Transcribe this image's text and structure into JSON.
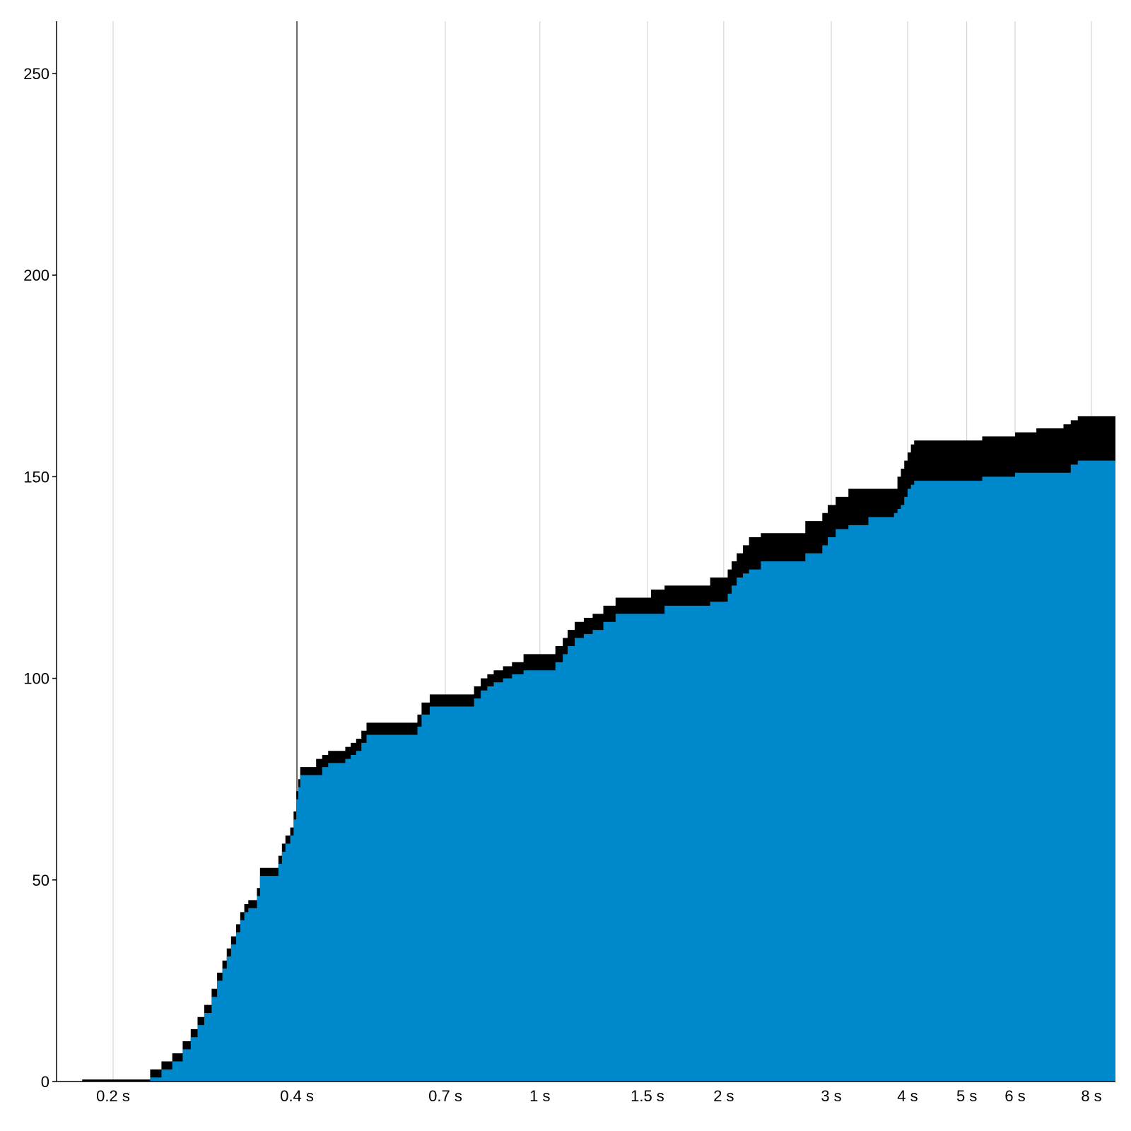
{
  "chart_data": {
    "type": "area",
    "title": "",
    "xlabel": "",
    "ylabel": "",
    "x_scale": "log",
    "x_unit": "s",
    "xlim": [
      0.165,
      9.6
    ],
    "ylim": [
      0,
      263
    ],
    "grid": true,
    "highlighted_x_gridline": 0.4,
    "x_ticks": [
      {
        "value": 0.2,
        "label": "0.2 s"
      },
      {
        "value": 0.4,
        "label": "0.4 s"
      },
      {
        "value": 0.7,
        "label": "0.7 s"
      },
      {
        "value": 1,
        "label": "1 s"
      },
      {
        "value": 1.5,
        "label": "1.5 s"
      },
      {
        "value": 2,
        "label": "2 s"
      },
      {
        "value": 3,
        "label": "3 s"
      },
      {
        "value": 4,
        "label": "4 s"
      },
      {
        "value": 5,
        "label": "5 s"
      },
      {
        "value": 6,
        "label": "6 s"
      },
      {
        "value": 8,
        "label": "8 s"
      }
    ],
    "y_ticks": [
      {
        "value": 0,
        "label": "0"
      },
      {
        "value": 50,
        "label": "50"
      },
      {
        "value": 100,
        "label": "100"
      },
      {
        "value": 150,
        "label": "150"
      },
      {
        "value": 200,
        "label": "200"
      },
      {
        "value": 250,
        "label": "250"
      }
    ],
    "series": [
      {
        "color": "#0088cc",
        "points": [
          [
            0.178,
            0
          ],
          [
            0.23,
            1
          ],
          [
            0.24,
            3
          ],
          [
            0.25,
            5
          ],
          [
            0.26,
            8
          ],
          [
            0.268,
            11
          ],
          [
            0.275,
            14
          ],
          [
            0.282,
            17
          ],
          [
            0.29,
            21
          ],
          [
            0.296,
            25
          ],
          [
            0.302,
            28
          ],
          [
            0.307,
            31
          ],
          [
            0.312,
            34
          ],
          [
            0.318,
            37
          ],
          [
            0.323,
            40
          ],
          [
            0.328,
            42
          ],
          [
            0.333,
            43
          ],
          [
            0.34,
            43
          ],
          [
            0.344,
            46
          ],
          [
            0.348,
            51
          ],
          [
            0.36,
            51
          ],
          [
            0.37,
            51
          ],
          [
            0.373,
            54
          ],
          [
            0.378,
            57
          ],
          [
            0.383,
            59
          ],
          [
            0.39,
            61
          ],
          [
            0.395,
            65
          ],
          [
            0.399,
            70
          ],
          [
            0.402,
            73
          ],
          [
            0.405,
            76
          ],
          [
            0.41,
            76
          ],
          [
            0.43,
            76
          ],
          [
            0.44,
            78
          ],
          [
            0.45,
            79
          ],
          [
            0.47,
            79
          ],
          [
            0.48,
            80
          ],
          [
            0.49,
            81
          ],
          [
            0.5,
            82
          ],
          [
            0.51,
            84
          ],
          [
            0.52,
            86
          ],
          [
            0.56,
            86
          ],
          [
            0.6,
            86
          ],
          [
            0.63,
            88
          ],
          [
            0.64,
            91
          ],
          [
            0.66,
            93
          ],
          [
            0.7,
            93
          ],
          [
            0.76,
            93
          ],
          [
            0.78,
            95
          ],
          [
            0.8,
            97
          ],
          [
            0.82,
            98
          ],
          [
            0.84,
            99
          ],
          [
            0.87,
            100
          ],
          [
            0.9,
            101
          ],
          [
            0.94,
            102
          ],
          [
            1.0,
            102
          ],
          [
            1.03,
            102
          ],
          [
            1.06,
            104
          ],
          [
            1.09,
            106
          ],
          [
            1.11,
            108
          ],
          [
            1.14,
            110
          ],
          [
            1.18,
            111
          ],
          [
            1.22,
            112
          ],
          [
            1.27,
            114
          ],
          [
            1.33,
            116
          ],
          [
            1.4,
            116
          ],
          [
            1.52,
            116
          ],
          [
            1.6,
            118
          ],
          [
            1.7,
            118
          ],
          [
            1.8,
            118
          ],
          [
            1.9,
            119
          ],
          [
            2.0,
            119
          ],
          [
            2.03,
            121
          ],
          [
            2.06,
            123
          ],
          [
            2.1,
            125
          ],
          [
            2.15,
            126
          ],
          [
            2.2,
            127
          ],
          [
            2.3,
            129
          ],
          [
            2.7,
            129
          ],
          [
            2.72,
            131
          ],
          [
            2.9,
            133
          ],
          [
            2.96,
            135
          ],
          [
            3.05,
            137
          ],
          [
            3.2,
            138
          ],
          [
            3.45,
            140
          ],
          [
            3.8,
            141
          ],
          [
            3.85,
            142
          ],
          [
            3.9,
            143
          ],
          [
            3.95,
            145
          ],
          [
            4.0,
            147
          ],
          [
            4.05,
            148
          ],
          [
            4.1,
            149
          ],
          [
            5.0,
            149
          ],
          [
            5.3,
            150
          ],
          [
            6.0,
            151
          ],
          [
            6.5,
            151
          ],
          [
            7.2,
            151
          ],
          [
            7.4,
            153
          ],
          [
            7.6,
            154
          ],
          [
            9.6,
            154
          ]
        ]
      },
      {
        "color": "#000000",
        "points": [
          [
            0.178,
            0.5
          ],
          [
            0.23,
            3
          ],
          [
            0.24,
            5
          ],
          [
            0.25,
            7
          ],
          [
            0.26,
            10
          ],
          [
            0.268,
            13
          ],
          [
            0.275,
            16
          ],
          [
            0.282,
            19
          ],
          [
            0.29,
            23
          ],
          [
            0.296,
            27
          ],
          [
            0.302,
            30
          ],
          [
            0.307,
            33
          ],
          [
            0.312,
            36
          ],
          [
            0.318,
            39
          ],
          [
            0.323,
            42
          ],
          [
            0.328,
            44
          ],
          [
            0.333,
            45
          ],
          [
            0.34,
            45
          ],
          [
            0.344,
            48
          ],
          [
            0.348,
            53
          ],
          [
            0.36,
            53
          ],
          [
            0.37,
            53
          ],
          [
            0.373,
            56
          ],
          [
            0.378,
            59
          ],
          [
            0.383,
            61
          ],
          [
            0.39,
            63
          ],
          [
            0.395,
            67
          ],
          [
            0.399,
            72
          ],
          [
            0.402,
            75
          ],
          [
            0.405,
            78
          ],
          [
            0.41,
            78
          ],
          [
            0.43,
            80
          ],
          [
            0.44,
            81
          ],
          [
            0.45,
            82
          ],
          [
            0.47,
            82
          ],
          [
            0.48,
            83
          ],
          [
            0.49,
            84
          ],
          [
            0.5,
            85
          ],
          [
            0.51,
            87
          ],
          [
            0.52,
            89
          ],
          [
            0.56,
            89
          ],
          [
            0.6,
            89
          ],
          [
            0.63,
            91
          ],
          [
            0.64,
            94
          ],
          [
            0.66,
            96
          ],
          [
            0.7,
            96
          ],
          [
            0.76,
            96
          ],
          [
            0.78,
            98
          ],
          [
            0.8,
            100
          ],
          [
            0.82,
            101
          ],
          [
            0.84,
            102
          ],
          [
            0.87,
            103
          ],
          [
            0.9,
            104
          ],
          [
            0.94,
            106
          ],
          [
            1.0,
            106
          ],
          [
            1.03,
            106
          ],
          [
            1.06,
            108
          ],
          [
            1.09,
            110
          ],
          [
            1.11,
            112
          ],
          [
            1.14,
            114
          ],
          [
            1.18,
            115
          ],
          [
            1.22,
            116
          ],
          [
            1.27,
            118
          ],
          [
            1.33,
            120
          ],
          [
            1.4,
            120
          ],
          [
            1.52,
            122
          ],
          [
            1.6,
            123
          ],
          [
            1.7,
            123
          ],
          [
            1.8,
            123
          ],
          [
            1.9,
            125
          ],
          [
            2.0,
            125
          ],
          [
            2.03,
            127
          ],
          [
            2.06,
            129
          ],
          [
            2.1,
            131
          ],
          [
            2.15,
            133
          ],
          [
            2.2,
            135
          ],
          [
            2.3,
            136
          ],
          [
            2.7,
            136
          ],
          [
            2.72,
            139
          ],
          [
            2.9,
            141
          ],
          [
            2.96,
            143
          ],
          [
            3.05,
            145
          ],
          [
            3.2,
            147
          ],
          [
            3.45,
            147
          ],
          [
            3.8,
            147
          ],
          [
            3.85,
            150
          ],
          [
            3.9,
            152
          ],
          [
            3.95,
            154
          ],
          [
            4.0,
            156
          ],
          [
            4.05,
            158
          ],
          [
            4.1,
            159
          ],
          [
            5.0,
            159
          ],
          [
            5.3,
            160
          ],
          [
            6.0,
            161
          ],
          [
            6.5,
            162
          ],
          [
            7.2,
            163
          ],
          [
            7.4,
            164
          ],
          [
            7.6,
            165
          ],
          [
            9.6,
            165
          ]
        ]
      }
    ]
  }
}
